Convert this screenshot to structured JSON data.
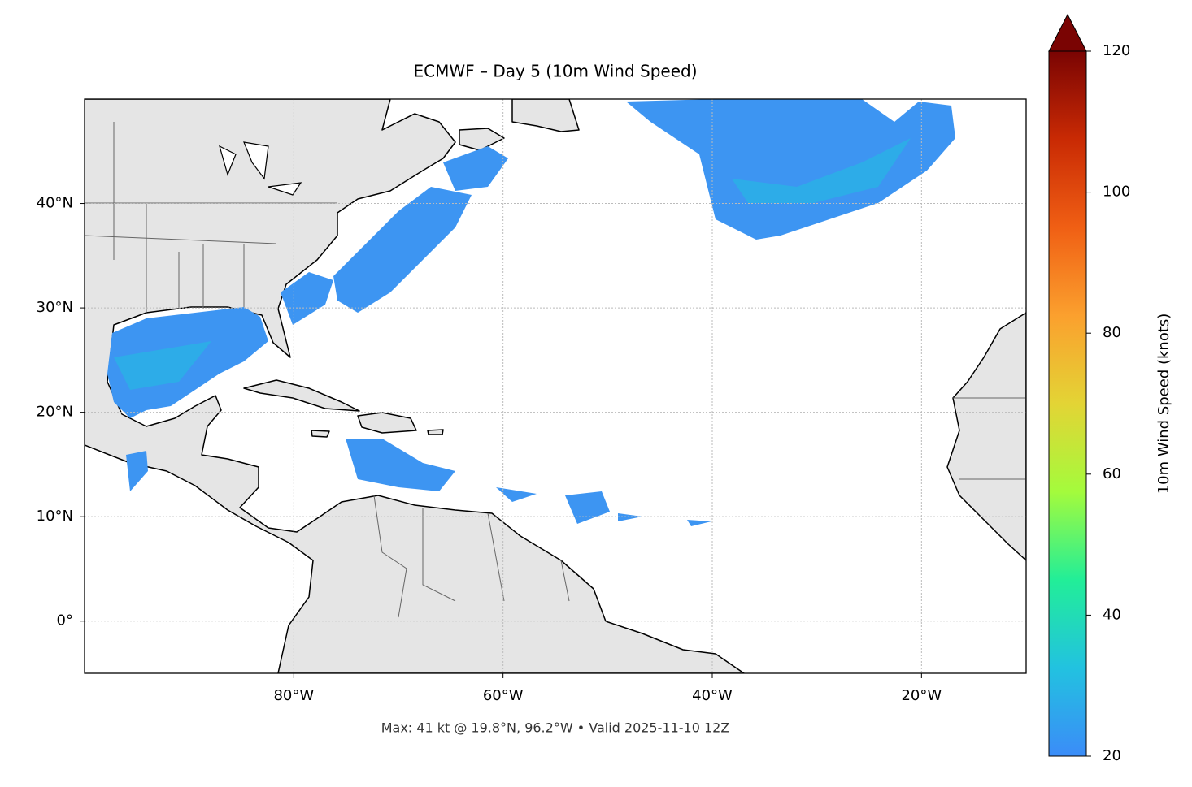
{
  "chart_data": {
    "type": "map",
    "title": "ECMWF – Day 5 (10m Wind Speed)",
    "annotation": "Max: 41 kt @ 19.8°N, 96.2°W • Valid 2025-11-10 12Z",
    "xlim": [
      -100,
      -10
    ],
    "ylim": [
      -5,
      50
    ],
    "xticks": [
      {
        "value": -80,
        "label": "80°W"
      },
      {
        "value": -60,
        "label": "60°W"
      },
      {
        "value": -40,
        "label": "40°W"
      },
      {
        "value": -20,
        "label": "20°W"
      }
    ],
    "yticks": [
      {
        "value": 0,
        "label": "0°"
      },
      {
        "value": 10,
        "label": "10°N"
      },
      {
        "value": 20,
        "label": "20°N"
      },
      {
        "value": 30,
        "label": "30°N"
      },
      {
        "value": 40,
        "label": "40°N"
      }
    ],
    "grid": true,
    "colorbar": {
      "label": "10m Wind Speed (knots)",
      "lim": [
        20,
        120
      ],
      "ticks": [
        20,
        40,
        60,
        80,
        100,
        120
      ],
      "colormap": [
        "#3b8cf8",
        "#22c2e0",
        "#22ee98",
        "#a4fb3c",
        "#e3d435",
        "#fba02e",
        "#f05f14",
        "#c92a04",
        "#7a0403"
      ],
      "extend": "max"
    }
  }
}
